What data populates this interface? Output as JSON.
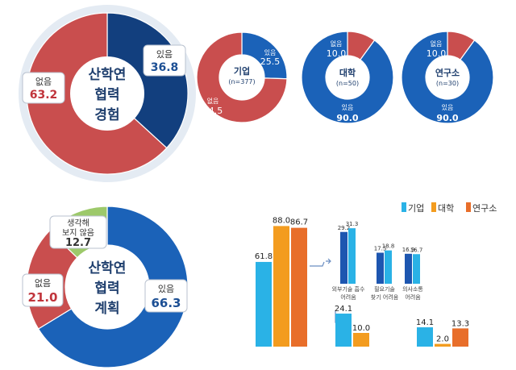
{
  "colors": {
    "navy": "#123f7e",
    "blue": "#1b62b8",
    "red": "#c94e4e",
    "green": "#9dc96a",
    "cyan": "#2ab2e6",
    "orange": "#f39c1f",
    "deep_orange": "#e86e2a",
    "dark_blue_bar": "#1d56b0",
    "ring": "#e4ebf3",
    "red_text": "#c0343b",
    "blue_text": "#1c4f94"
  },
  "chart_data": [
    {
      "type": "pie",
      "center_label": [
        "산학연",
        "협력",
        "경험"
      ],
      "slices": [
        {
          "label": "있음",
          "value": 36.8,
          "value_label": "36.8",
          "color": "#123f7e"
        },
        {
          "label": "없음",
          "value": 63.2,
          "value_label": "63.2",
          "color": "#c94e4e"
        }
      ]
    },
    {
      "type": "pie",
      "center_label": [
        "기업",
        "(n=377)"
      ],
      "slices": [
        {
          "label": "있음",
          "value": 25.5,
          "value_label": "25.5",
          "color": "#1b62b8"
        },
        {
          "label": "없음",
          "value": 74.5,
          "value_label": "74.5",
          "color": "#c94e4e"
        }
      ]
    },
    {
      "type": "pie",
      "center_label": [
        "대학",
        "(n=50)"
      ],
      "slices": [
        {
          "label": "없음",
          "value": 10.0,
          "value_label": "10.0",
          "color": "#c94e4e"
        },
        {
          "label": "있음",
          "value": 90.0,
          "value_label": "90.0",
          "color": "#1b62b8"
        }
      ]
    },
    {
      "type": "pie",
      "center_label": [
        "연구소",
        "(n=30)"
      ],
      "slices": [
        {
          "label": "없음",
          "value": 10.0,
          "value_label": "10.0",
          "color": "#c94e4e"
        },
        {
          "label": "있음",
          "value": 90.0,
          "value_label": "90.0",
          "color": "#1b62b8"
        }
      ]
    },
    {
      "type": "pie",
      "center_label": [
        "산학연",
        "협력",
        "계획"
      ],
      "slices": [
        {
          "label": "있음",
          "value": 66.3,
          "value_label": "66.3",
          "color": "#1b62b8"
        },
        {
          "label": "없음",
          "value": 21.0,
          "value_label": "21.0",
          "color": "#c94e4e"
        },
        {
          "label": "생각해 보지 않음",
          "label_lines": [
            "생각해",
            "보지 않음"
          ],
          "value": 12.7,
          "value_label": "12.7",
          "color": "#9dc96a"
        }
      ]
    },
    {
      "type": "bar",
      "legend": [
        {
          "name": "기업",
          "color": "#2ab2e6"
        },
        {
          "name": "대학",
          "color": "#f39c1f"
        },
        {
          "name": "연구소",
          "color": "#e86e2a"
        }
      ],
      "main_group": {
        "values": [
          61.8,
          88.0,
          86.7
        ],
        "value_labels": [
          "61.8",
          "88.0",
          "86.7"
        ]
      },
      "sub_groups": [
        {
          "label_lines": [
            "외부기술 흡수",
            "어려움"
          ],
          "values": [
            29.2,
            31.3
          ],
          "value_labels": [
            "29.2",
            "31.3"
          ]
        },
        {
          "label_lines": [
            "필요기술",
            "찾기 어려움"
          ],
          "values": [
            17.5,
            18.8
          ],
          "value_labels": [
            "17.5",
            "18.8"
          ]
        },
        {
          "label_lines": [
            "의사소통",
            "어려움"
          ],
          "values": [
            16.9,
            16.7
          ],
          "value_labels": [
            "16.9",
            "16.7"
          ]
        }
      ],
      "second_group": {
        "values": [
          24.1,
          10.0
        ],
        "value_labels": [
          "24.1",
          "10.0"
        ]
      },
      "third_group": {
        "values": [
          14.1,
          2.0,
          13.3
        ],
        "value_labels": [
          "14.1",
          "2.0",
          "13.3"
        ]
      }
    }
  ]
}
